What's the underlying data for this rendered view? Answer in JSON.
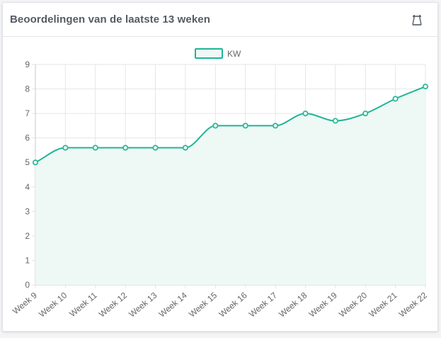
{
  "card": {
    "title": "Beoordelingen van de laatste 13 weken",
    "icon": "date-range-icon"
  },
  "colors": {
    "line": "#1fb597",
    "fill": "#eef8f5",
    "grid": "#e6e6e6"
  },
  "chart_data": {
    "type": "line",
    "categories": [
      "Week 9",
      "Week 10",
      "Week 11",
      "Week 12",
      "Week 13",
      "Week 14",
      "Week 15",
      "Week 16",
      "Week 17",
      "Week 18",
      "Week 19",
      "Week 20",
      "Week 21",
      "Week 22"
    ],
    "series": [
      {
        "name": "KW",
        "values": [
          5.0,
          5.6,
          5.6,
          5.6,
          5.6,
          5.6,
          6.5,
          6.5,
          6.5,
          7.0,
          6.7,
          7.0,
          7.6,
          8.1
        ]
      }
    ],
    "ylim": [
      0,
      9
    ],
    "yticks": [
      0,
      1,
      2,
      3,
      4,
      5,
      6,
      7,
      8,
      9
    ],
    "grid": true,
    "legend": "top-center",
    "area_fill": true
  }
}
